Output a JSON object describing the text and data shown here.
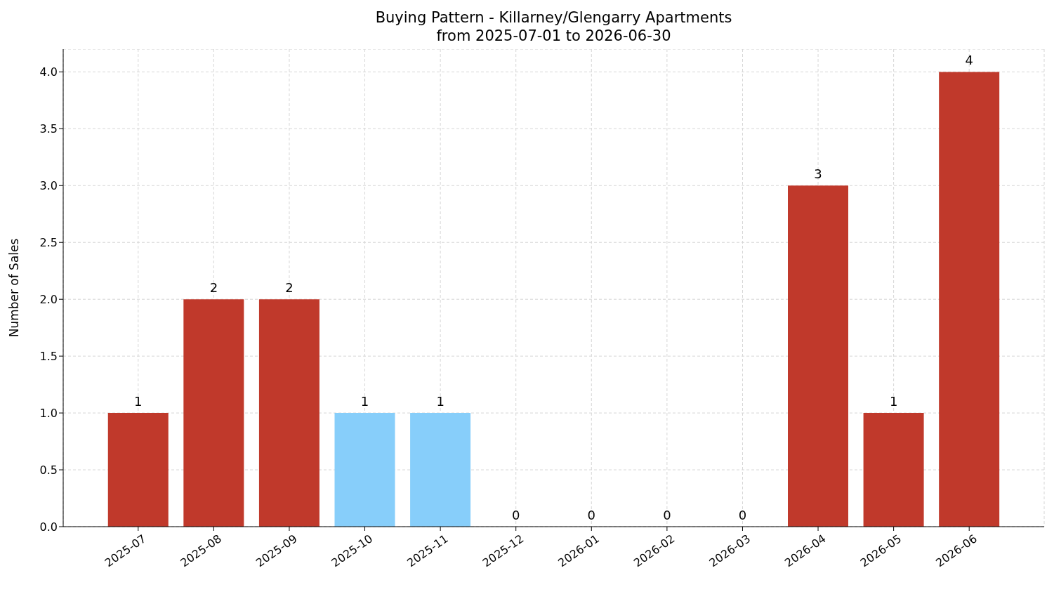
{
  "chart_data": {
    "type": "bar",
    "title": "Buying Pattern - Killarney/Glengarry Apartments",
    "subtitle": "from 2025-07-01 to 2026-06-30",
    "ylabel": "Number of Sales",
    "categories": [
      "2025-07",
      "2025-08",
      "2025-09",
      "2025-10",
      "2025-11",
      "2025-12",
      "2026-01",
      "2026-02",
      "2026-03",
      "2026-04",
      "2026-05",
      "2026-06"
    ],
    "values": [
      1,
      2,
      2,
      1,
      1,
      0,
      0,
      0,
      0,
      3,
      1,
      4
    ],
    "colors": [
      "#c0392b",
      "#c0392b",
      "#c0392b",
      "#87cefa",
      "#87cefa",
      "#c0392b",
      "#c0392b",
      "#c0392b",
      "#c0392b",
      "#c0392b",
      "#c0392b",
      "#c0392b"
    ],
    "ylim": [
      0,
      4.2
    ],
    "yticks": [
      {
        "value": 0,
        "label": "0.0"
      },
      {
        "value": 0.5,
        "label": "0.5"
      },
      {
        "value": 1,
        "label": "1.0"
      },
      {
        "value": 1.5,
        "label": "1.5"
      },
      {
        "value": 2,
        "label": "2.0"
      },
      {
        "value": 2.5,
        "label": "2.5"
      },
      {
        "value": 3,
        "label": "3.0"
      },
      {
        "value": 3.5,
        "label": "3.5"
      },
      {
        "value": 4,
        "label": "4.0"
      }
    ],
    "grid": true,
    "data_labels": true
  }
}
